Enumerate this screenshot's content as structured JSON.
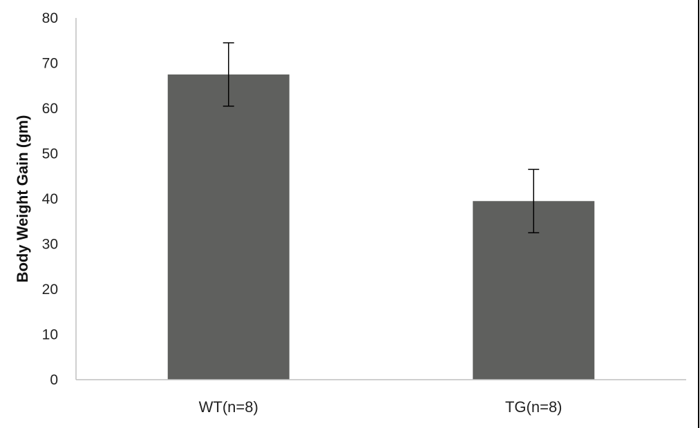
{
  "chart_data": {
    "type": "bar",
    "title": "",
    "xlabel": "",
    "ylabel": "Body Weight Gain (gm)",
    "ylim": [
      0,
      80
    ],
    "yticks": [
      0,
      10,
      20,
      30,
      40,
      50,
      60,
      70,
      80
    ],
    "categories": [
      "WT(n=8)",
      "TG(n=8)"
    ],
    "values": [
      67.5,
      39.5
    ],
    "error": [
      7.0,
      7.0
    ],
    "grid": false,
    "legend": "none",
    "bar_color": "#5f605e"
  }
}
